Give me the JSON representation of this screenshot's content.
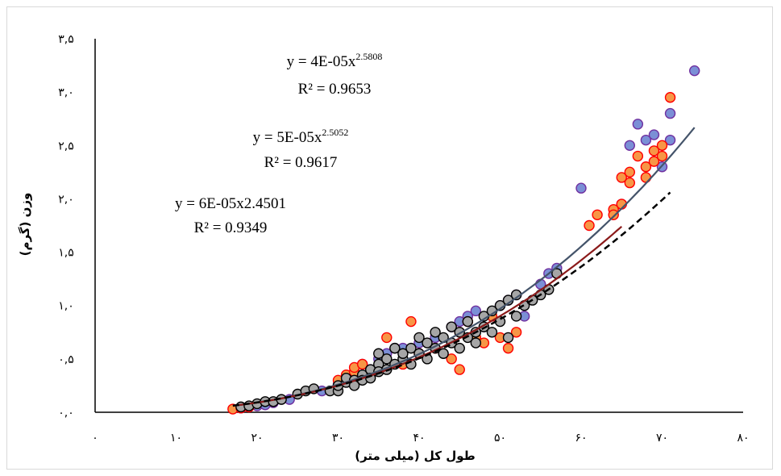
{
  "chart_data": {
    "type": "scatter",
    "title": "",
    "xlabel": "طول کل (میلی متر)",
    "ylabel": "وزن (گرم)",
    "xlim": [
      0,
      80
    ],
    "ylim": [
      0,
      3.5
    ],
    "x_ticks": [
      0,
      10,
      20,
      30,
      40,
      50,
      60,
      70,
      80
    ],
    "x_tick_labels": [
      "۰",
      "۱۰",
      "۲۰",
      "۳۰",
      "۴۰",
      "۵۰",
      "۶۰",
      "۷۰",
      "۸۰"
    ],
    "y_ticks": [
      0,
      0.5,
      1.0,
      1.5,
      2.0,
      2.5,
      3.0,
      3.5
    ],
    "y_tick_labels": [
      "۰,۰",
      "۰,۵",
      "۱,۰",
      "۱,۵",
      "۲,۰",
      "۲,۵",
      "۳,۰",
      "۳,۵"
    ],
    "grid": false,
    "annotations": [
      {
        "base": "y = 4E-05x",
        "sup": "2.5808",
        "r2": "R² = 0.9653"
      },
      {
        "base": "y = 5E-05x",
        "sup": "2.5052",
        "r2": "R² = 0.9617"
      },
      {
        "base": "y = 6E-05x2.4501",
        "sup": "",
        "r2": "R² = 0.9349"
      }
    ],
    "colors": {
      "blue_fill": "#7b8fd6",
      "blue_edge": "#7030a0",
      "orange_fill": "#f79646",
      "orange_edge": "#ff0000",
      "gray_fill": "#a6a6a6",
      "gray_edge": "#000000",
      "trend_solid": "#44546a",
      "trend_dashed": "#000000",
      "trend_dark": "#8b1a1a"
    },
    "trendlines": [
      {
        "a": 4e-05,
        "b": 2.5808,
        "x_range": [
          17,
          74
        ],
        "style": "solid",
        "color_key": "trend_solid"
      },
      {
        "a": 5e-05,
        "b": 2.5052,
        "x_range": [
          17,
          65
        ],
        "style": "solid",
        "color_key": "trend_dark"
      },
      {
        "a": 6e-05,
        "b": 2.4501,
        "x_range": [
          17,
          71
        ],
        "style": "dashed",
        "color_key": "trend_dashed"
      }
    ],
    "series": [
      {
        "color_key": "blue",
        "points": [
          [
            18,
            0.04
          ],
          [
            20,
            0.06
          ],
          [
            21,
            0.07
          ],
          [
            22,
            0.09
          ],
          [
            24,
            0.12
          ],
          [
            28,
            0.2
          ],
          [
            30,
            0.26
          ],
          [
            31,
            0.3
          ],
          [
            32,
            0.35
          ],
          [
            33,
            0.45
          ],
          [
            34,
            0.4
          ],
          [
            35,
            0.5
          ],
          [
            36,
            0.55
          ],
          [
            37,
            0.6
          ],
          [
            38,
            0.6
          ],
          [
            40,
            0.65
          ],
          [
            42,
            0.7
          ],
          [
            44,
            0.8
          ],
          [
            45,
            0.85
          ],
          [
            46,
            0.9
          ],
          [
            47,
            0.95
          ],
          [
            48,
            0.8
          ],
          [
            50,
            1.0
          ],
          [
            51,
            1.05
          ],
          [
            52,
            1.1
          ],
          [
            53,
            0.9
          ],
          [
            55,
            1.2
          ],
          [
            56,
            1.3
          ],
          [
            57,
            1.35
          ],
          [
            60,
            2.1
          ],
          [
            65,
            1.95
          ],
          [
            66,
            2.5
          ],
          [
            67,
            2.7
          ],
          [
            68,
            2.55
          ],
          [
            69,
            2.6
          ],
          [
            70,
            2.3
          ],
          [
            71,
            2.55
          ],
          [
            71,
            2.8
          ],
          [
            74,
            3.2
          ]
        ]
      },
      {
        "color_key": "orange",
        "points": [
          [
            17,
            0.03
          ],
          [
            18,
            0.04
          ],
          [
            19,
            0.05
          ],
          [
            30,
            0.3
          ],
          [
            31,
            0.35
          ],
          [
            32,
            0.38
          ],
          [
            32,
            0.42
          ],
          [
            33,
            0.45
          ],
          [
            34,
            0.35
          ],
          [
            36,
            0.7
          ],
          [
            38,
            0.45
          ],
          [
            39,
            0.85
          ],
          [
            40,
            0.55
          ],
          [
            42,
            0.6
          ],
          [
            44,
            0.5
          ],
          [
            45,
            0.4
          ],
          [
            45,
            0.75
          ],
          [
            46,
            0.85
          ],
          [
            47,
            0.7
          ],
          [
            48,
            0.65
          ],
          [
            49,
            0.9
          ],
          [
            50,
            0.7
          ],
          [
            51,
            0.6
          ],
          [
            52,
            0.75
          ],
          [
            61,
            1.75
          ],
          [
            62,
            1.85
          ],
          [
            64,
            1.9
          ],
          [
            64,
            1.85
          ],
          [
            65,
            1.95
          ],
          [
            65,
            2.2
          ],
          [
            66,
            2.15
          ],
          [
            66,
            2.25
          ],
          [
            67,
            2.4
          ],
          [
            68,
            2.2
          ],
          [
            68,
            2.3
          ],
          [
            69,
            2.35
          ],
          [
            69,
            2.45
          ],
          [
            70,
            2.5
          ],
          [
            70,
            2.4
          ],
          [
            71,
            2.95
          ]
        ]
      },
      {
        "color_key": "gray",
        "points": [
          [
            18,
            0.05
          ],
          [
            19,
            0.06
          ],
          [
            20,
            0.08
          ],
          [
            21,
            0.1
          ],
          [
            22,
            0.1
          ],
          [
            23,
            0.12
          ],
          [
            25,
            0.17
          ],
          [
            26,
            0.2
          ],
          [
            27,
            0.22
          ],
          [
            29,
            0.2
          ],
          [
            30,
            0.2
          ],
          [
            30,
            0.25
          ],
          [
            31,
            0.28
          ],
          [
            31,
            0.32
          ],
          [
            32,
            0.3
          ],
          [
            32,
            0.25
          ],
          [
            33,
            0.35
          ],
          [
            33,
            0.3
          ],
          [
            34,
            0.4
          ],
          [
            34,
            0.32
          ],
          [
            35,
            0.45
          ],
          [
            35,
            0.38
          ],
          [
            35,
            0.55
          ],
          [
            36,
            0.5
          ],
          [
            36,
            0.4
          ],
          [
            37,
            0.45
          ],
          [
            37,
            0.6
          ],
          [
            38,
            0.5
          ],
          [
            38,
            0.55
          ],
          [
            39,
            0.45
          ],
          [
            39,
            0.6
          ],
          [
            40,
            0.55
          ],
          [
            40,
            0.7
          ],
          [
            41,
            0.5
          ],
          [
            41,
            0.65
          ],
          [
            42,
            0.6
          ],
          [
            42,
            0.75
          ],
          [
            43,
            0.55
          ],
          [
            43,
            0.7
          ],
          [
            44,
            0.65
          ],
          [
            44,
            0.8
          ],
          [
            45,
            0.6
          ],
          [
            45,
            0.75
          ],
          [
            46,
            0.7
          ],
          [
            46,
            0.85
          ],
          [
            47,
            0.75
          ],
          [
            47,
            0.65
          ],
          [
            48,
            0.8
          ],
          [
            48,
            0.9
          ],
          [
            49,
            0.75
          ],
          [
            49,
            0.95
          ],
          [
            50,
            1.0
          ],
          [
            50,
            0.85
          ],
          [
            51,
            1.05
          ],
          [
            51,
            0.7
          ],
          [
            52,
            0.9
          ],
          [
            52,
            1.1
          ],
          [
            53,
            1.0
          ],
          [
            54,
            1.05
          ],
          [
            55,
            1.1
          ],
          [
            56,
            1.15
          ],
          [
            57,
            1.3
          ]
        ]
      }
    ]
  }
}
